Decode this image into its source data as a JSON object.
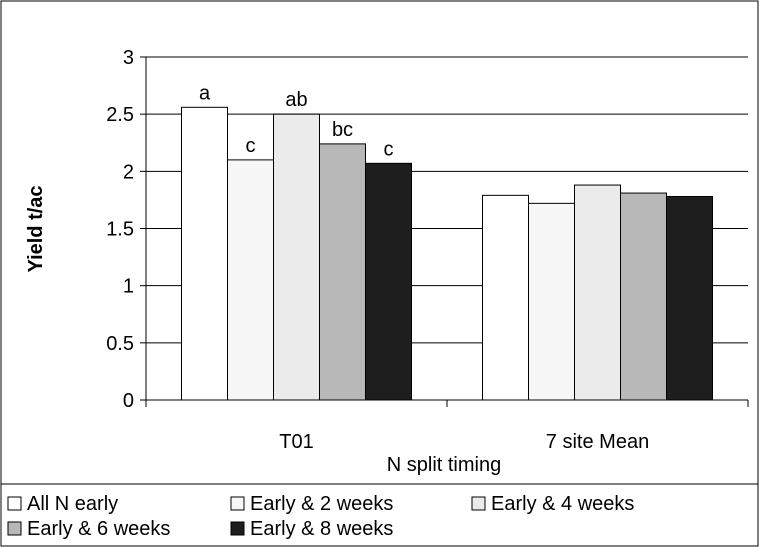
{
  "chart_data": {
    "type": "bar",
    "title": "",
    "xlabel": "N split timing",
    "ylabel": "Yield t/ac",
    "ylim": [
      0,
      3
    ],
    "yticks": [
      "0",
      "0.5",
      "1",
      "1.5",
      "2",
      "2.5",
      "3"
    ],
    "grid": true,
    "legend_position": "bottom",
    "categories": [
      "T01",
      "7 site Mean"
    ],
    "series": [
      {
        "name": "All N early",
        "color": "#ffffff",
        "values": [
          2.56,
          1.79
        ],
        "labels": [
          "a",
          ""
        ]
      },
      {
        "name": "Early & 2 weeks",
        "color": "#f7f7f7",
        "values": [
          2.1,
          1.72
        ],
        "labels": [
          "c",
          ""
        ]
      },
      {
        "name": "Early & 4 weeks",
        "color": "#ebebeb",
        "values": [
          2.5,
          1.88
        ],
        "labels": [
          "ab",
          ""
        ]
      },
      {
        "name": "Early & 6 weeks",
        "color": "#b8b8b8",
        "values": [
          2.24,
          1.81
        ],
        "labels": [
          "bc",
          ""
        ]
      },
      {
        "name": "Early & 8 weeks",
        "color": "#1e1e1e",
        "values": [
          2.07,
          1.78
        ],
        "labels": [
          "c",
          ""
        ]
      }
    ]
  }
}
